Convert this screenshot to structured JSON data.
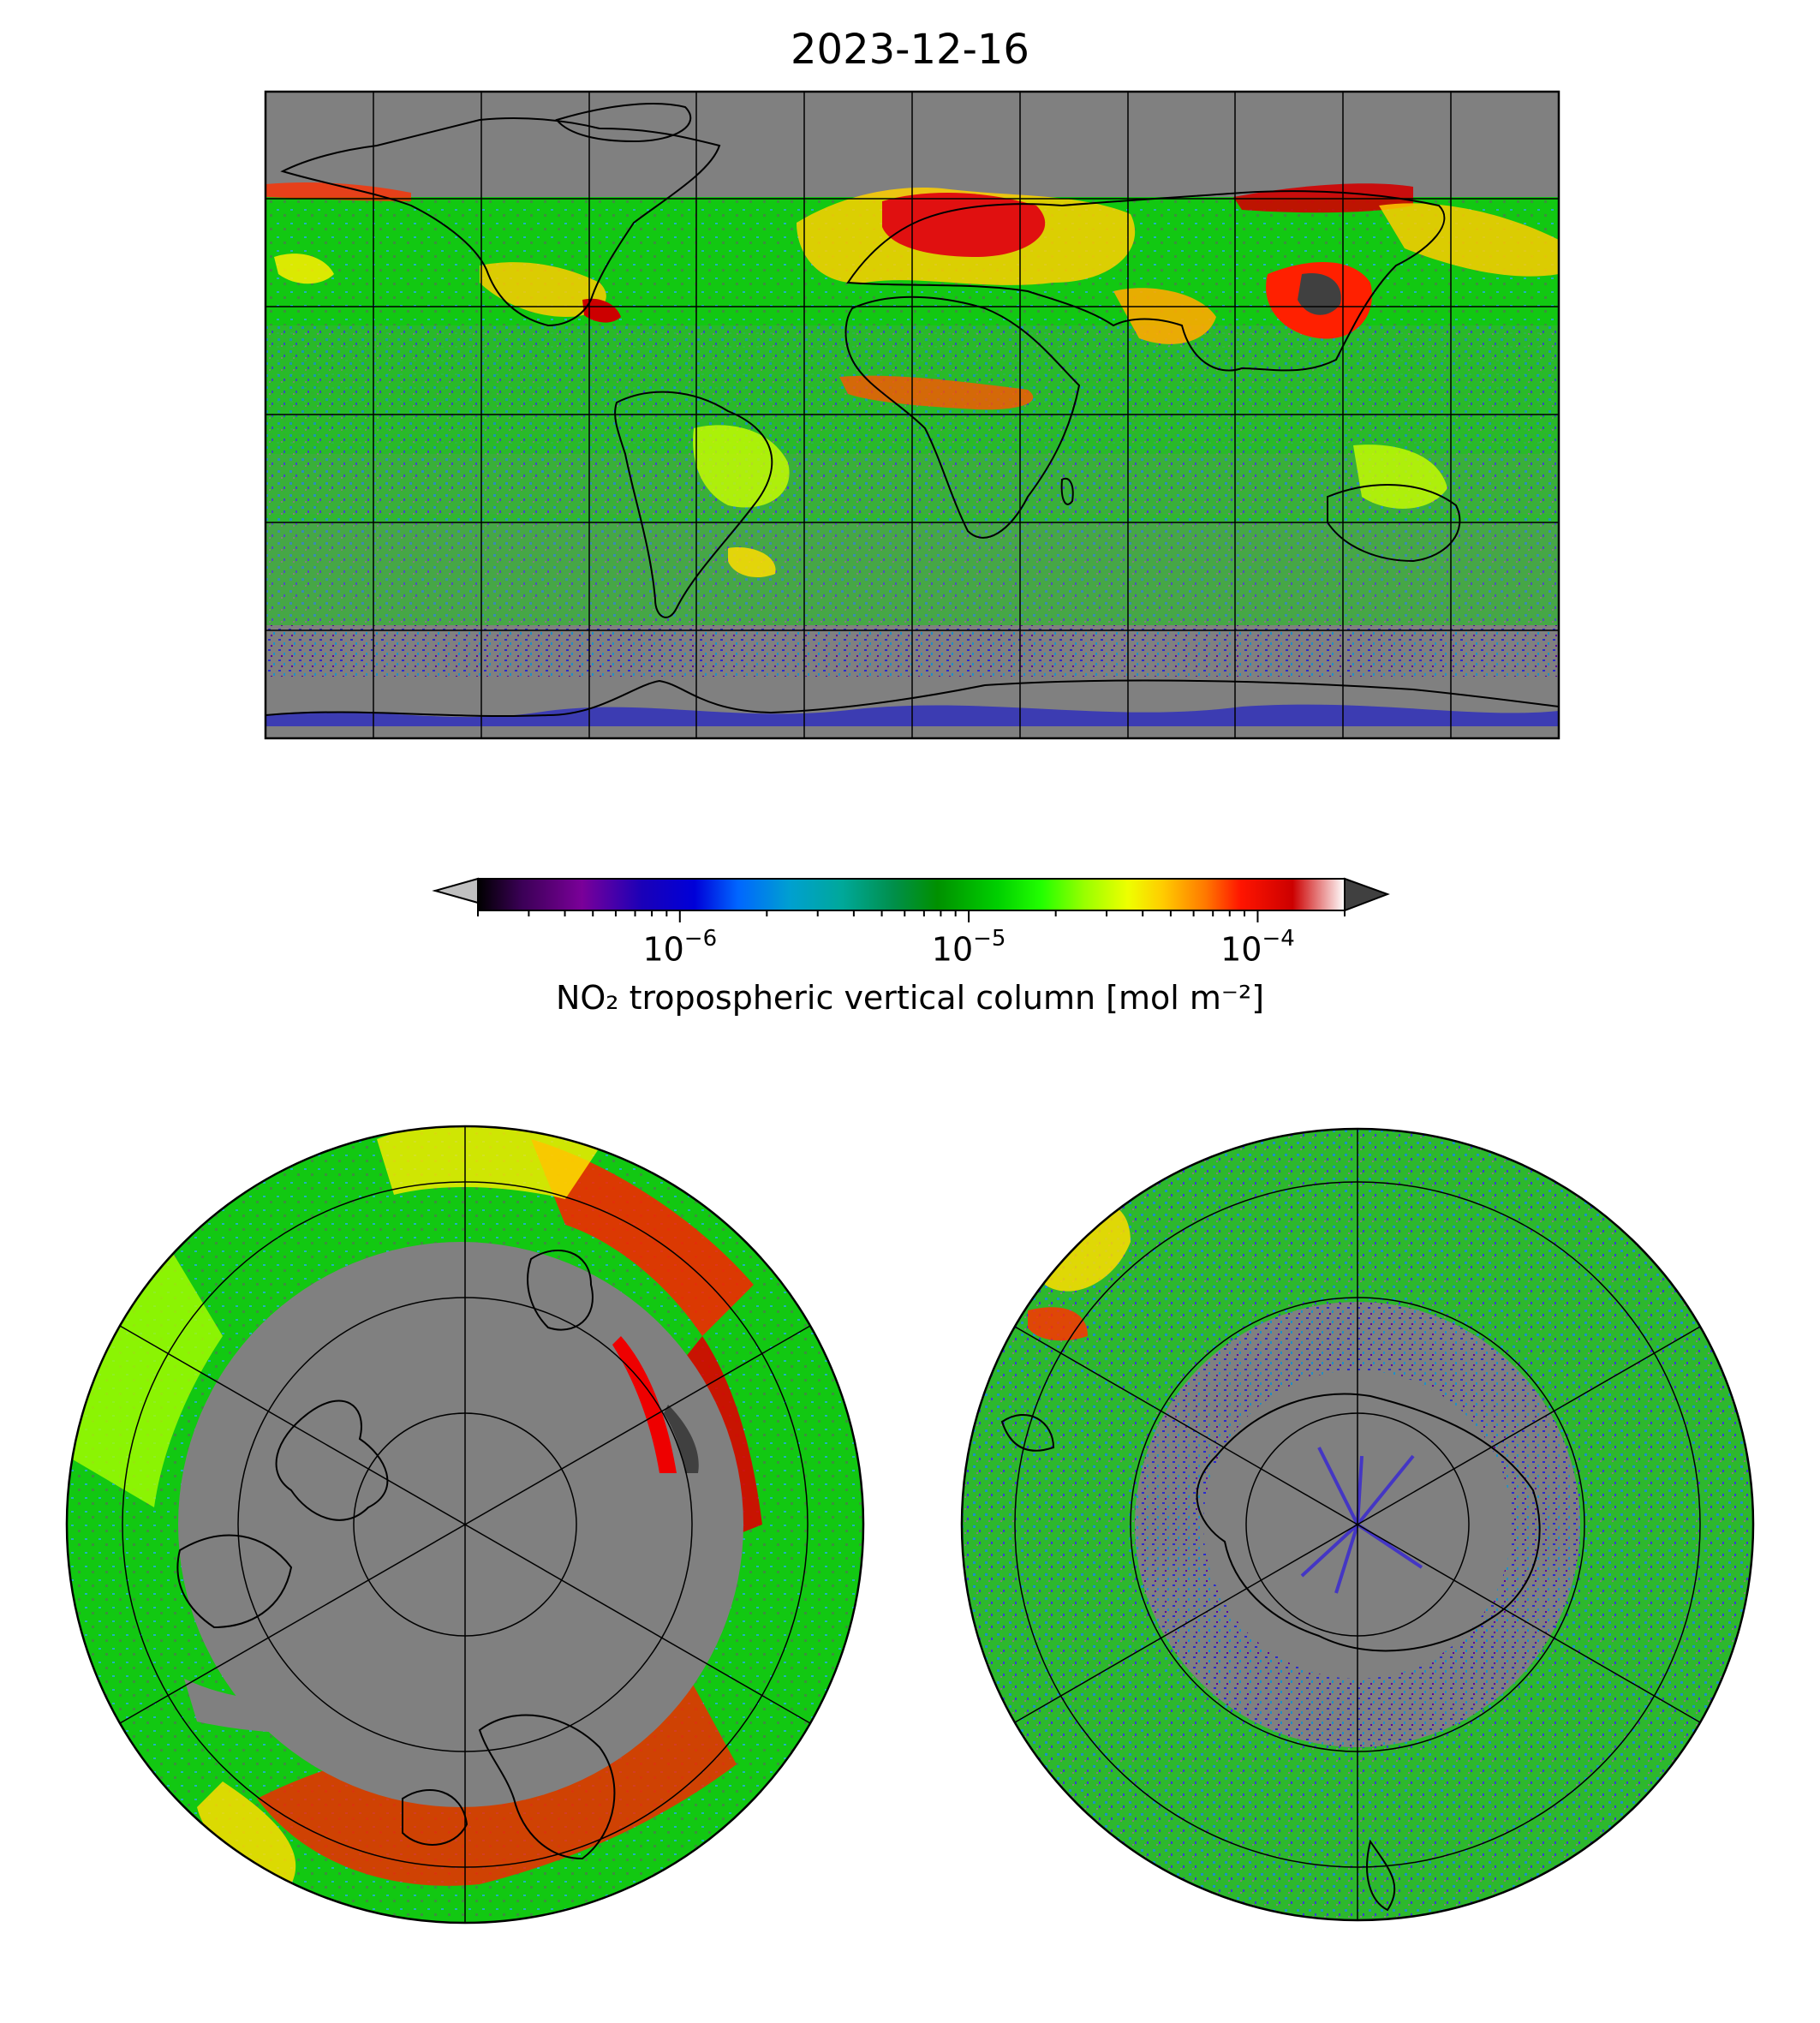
{
  "title": "2023-12-16",
  "colorbar": {
    "label": "NO₂ tropospheric vertical column [mol m⁻²]",
    "scale": "log",
    "range": [
      2e-07,
      0.0002
    ],
    "extend": "both",
    "ticks": [
      {
        "base": "10",
        "exp": "−6",
        "value": 1e-06
      },
      {
        "base": "10",
        "exp": "−5",
        "value": 1e-05
      },
      {
        "base": "10",
        "exp": "−4",
        "value": 0.0001
      }
    ],
    "colors": [
      "#000000",
      "#3a0055",
      "#7a0099",
      "#2a00b0",
      "#0000d8",
      "#0055ff",
      "#0099dd",
      "#00a8a8",
      "#008f5a",
      "#008800",
      "#00bb00",
      "#00ee00",
      "#66ff00",
      "#ccff00",
      "#ffee00",
      "#ffbb00",
      "#ff7700",
      "#ff2200",
      "#dd0000",
      "#cc0000",
      "#ffffff"
    ],
    "under_color": "#c0c0c0",
    "over_color": "#404040"
  },
  "maps": {
    "global": {
      "projection": "plate-carree",
      "no_data_color": "#808080"
    },
    "north_polar": {
      "projection": "north-polar-stereographic"
    },
    "south_polar": {
      "projection": "south-polar-stereographic"
    }
  }
}
